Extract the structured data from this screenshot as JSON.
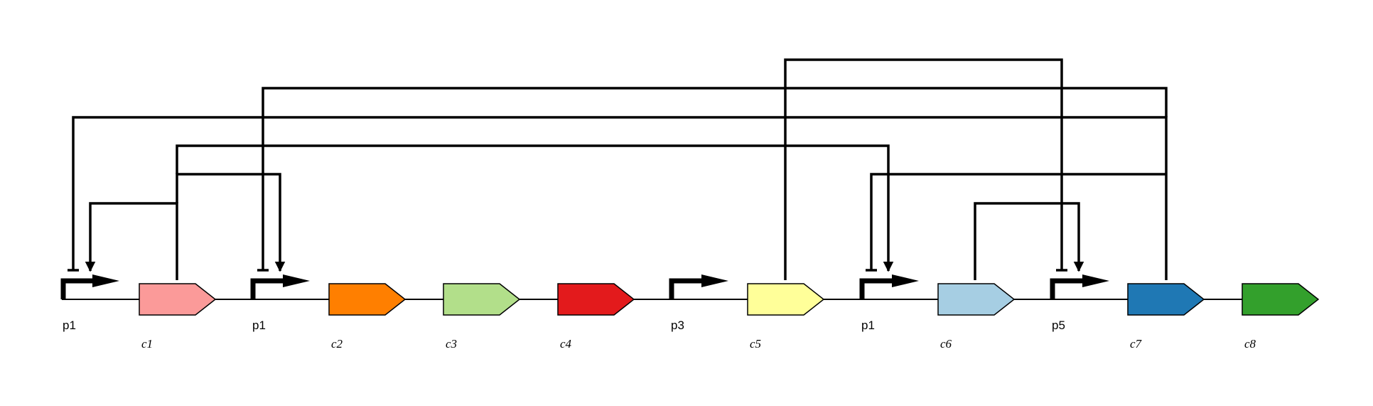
{
  "diagram": {
    "type": "genetic-circuit",
    "promoters": [
      {
        "id": "P1a",
        "label": "p1"
      },
      {
        "id": "P1b",
        "label": "p1"
      },
      {
        "id": "P3",
        "label": "p3"
      },
      {
        "id": "P1c",
        "label": "p1"
      },
      {
        "id": "P5",
        "label": "p5"
      }
    ],
    "cds": [
      {
        "id": "C1",
        "label": "c1",
        "color": "#fb9a99"
      },
      {
        "id": "C2",
        "label": "c2",
        "color": "#ff7f00"
      },
      {
        "id": "C3",
        "label": "c3",
        "color": "#b2df8a"
      },
      {
        "id": "C4",
        "label": "c4",
        "color": "#e31a1c"
      },
      {
        "id": "C5",
        "label": "c5",
        "color": "#ffff99"
      },
      {
        "id": "C6",
        "label": "c6",
        "color": "#a6cee3"
      },
      {
        "id": "C7",
        "label": "c7",
        "color": "#1f78b4"
      },
      {
        "id": "C8",
        "label": "c8",
        "color": "#33a02c"
      }
    ],
    "interactions": [
      {
        "from": "C1",
        "to": "P1a",
        "type": "activation"
      },
      {
        "from": "C1",
        "to": "P1b",
        "type": "activation"
      },
      {
        "from": "C1",
        "to": "P1c",
        "type": "activation"
      },
      {
        "from": "C5",
        "to": "P5",
        "type": "repression"
      },
      {
        "from": "C6",
        "to": "P5",
        "type": "activation"
      },
      {
        "from": "C7",
        "to": "P1a",
        "type": "repression"
      },
      {
        "from": "C7",
        "to": "P1b",
        "type": "repression"
      },
      {
        "from": "C7",
        "to": "P1c",
        "type": "repression"
      }
    ]
  }
}
